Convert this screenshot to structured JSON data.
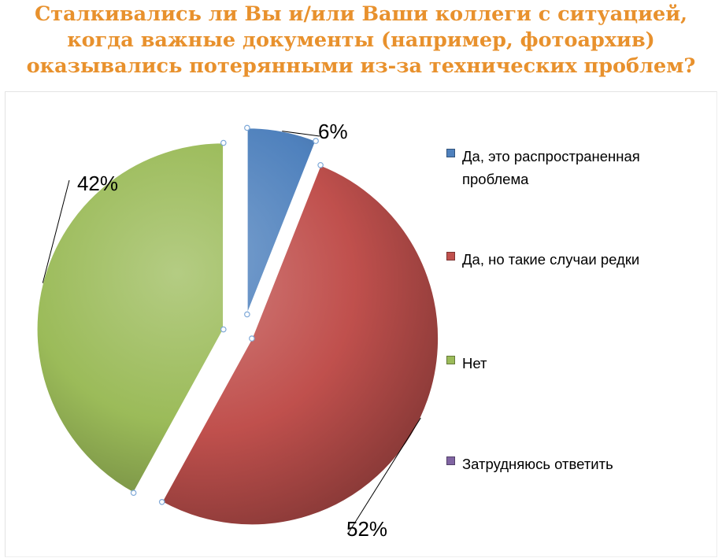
{
  "chart_data": {
    "type": "pie",
    "title_lines": [
      "Сталкивались ли Вы и/или Ваши коллеги с ситуацией,",
      "когда важные документы (например, фотоархив)",
      "оказывались потерянными из-за технических проблем?"
    ],
    "slices": [
      {
        "name": "Да, это распространенная проблема",
        "legend_lines": [
          "Да, это распространенная",
          "проблема"
        ],
        "value": 6,
        "label": "6%",
        "color": "#4F81BD"
      },
      {
        "name": "Да, но такие случаи редки",
        "legend_lines": [
          "Да, но такие случаи редки"
        ],
        "value": 52,
        "label": "52%",
        "color": "#C0504D"
      },
      {
        "name": "Нет",
        "legend_lines": [
          "Нет"
        ],
        "value": 42,
        "label": "42%",
        "color": "#9BBB59"
      },
      {
        "name": "Затрудняюсь ответить",
        "legend_lines": [
          "Затрудняюсь ответить"
        ],
        "value": 0,
        "label": "",
        "color": "#8064A2"
      }
    ],
    "legend_position": "right",
    "title_color": "#E8912D"
  }
}
